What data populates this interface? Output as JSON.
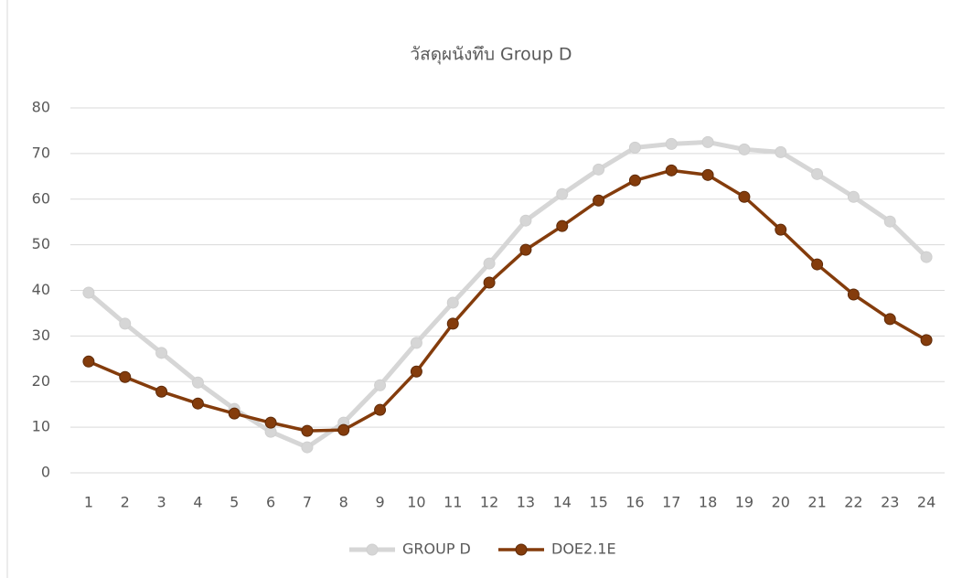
{
  "chart_data": {
    "type": "line",
    "title": "วัสดุผนังทึบ Group D",
    "categories": [
      "1",
      "2",
      "3",
      "4",
      "5",
      "6",
      "7",
      "8",
      "9",
      "10",
      "11",
      "12",
      "13",
      "14",
      "15",
      "16",
      "17",
      "18",
      "19",
      "20",
      "21",
      "22",
      "23",
      "24"
    ],
    "series": [
      {
        "name": "GROUP D",
        "color": "#d6d6d6",
        "values": [
          39.5,
          32.7,
          26.3,
          19.8,
          14.0,
          9.0,
          5.6,
          11.0,
          19.2,
          28.5,
          37.3,
          45.9,
          55.3,
          61.1,
          66.5,
          71.3,
          72.1,
          72.5,
          70.9,
          70.3,
          65.5,
          60.5,
          55.1,
          47.3
        ]
      },
      {
        "name": "DOE2.1E",
        "color": "#843c0c",
        "values": [
          24.4,
          21.0,
          17.8,
          15.2,
          13.0,
          11.0,
          9.2,
          9.4,
          13.8,
          22.2,
          32.7,
          41.7,
          48.9,
          54.1,
          59.7,
          64.1,
          66.3,
          65.3,
          60.5,
          53.3,
          45.7,
          39.1,
          33.7,
          29.1
        ]
      }
    ],
    "ylim": [
      0,
      80
    ],
    "yticks": [
      0,
      10,
      20,
      30,
      40,
      50,
      60,
      70,
      80
    ],
    "grid": true,
    "legend": "bottom"
  }
}
